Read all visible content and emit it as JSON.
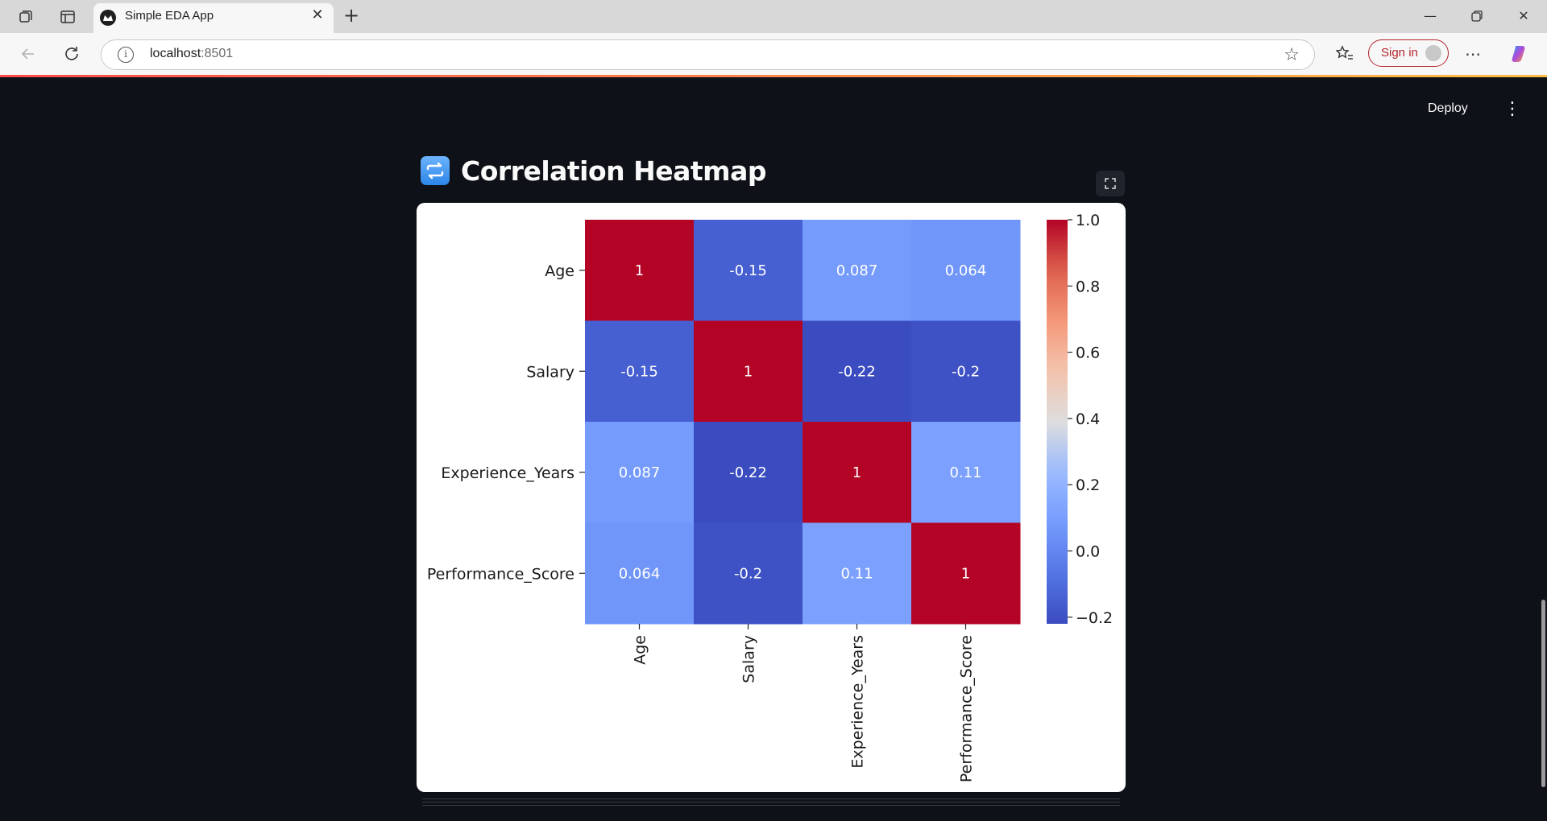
{
  "browser": {
    "tab_title": "Simple EDA App",
    "url_host": "localhost",
    "url_port": ":8501",
    "sign_in_label": "Sign in"
  },
  "app": {
    "deploy_label": "Deploy",
    "section_title": "Correlation Heatmap",
    "title_emoji": "repeat-arrows-icon"
  },
  "chart_data": {
    "type": "heatmap",
    "title": "",
    "rows": [
      "Age",
      "Salary",
      "Experience_Years",
      "Performance_Score"
    ],
    "columns": [
      "Age",
      "Salary",
      "Experience_Years",
      "Performance_Score"
    ],
    "values": [
      [
        1,
        -0.15,
        0.087,
        0.064
      ],
      [
        -0.15,
        1,
        -0.22,
        -0.2
      ],
      [
        0.087,
        -0.22,
        1,
        0.11
      ],
      [
        0.064,
        -0.2,
        0.11,
        1
      ]
    ],
    "value_labels": [
      [
        "1",
        "-0.15",
        "0.087",
        "0.064"
      ],
      [
        "-0.15",
        "1",
        "-0.22",
        "-0.2"
      ],
      [
        "0.087",
        "-0.22",
        "1",
        "0.11"
      ],
      [
        "0.064",
        "-0.2",
        "0.11",
        "1"
      ]
    ],
    "colormap": "coolwarm",
    "vmin": -0.22,
    "vmax": 1.0,
    "colorbar_ticks": [
      1.0,
      0.8,
      0.6,
      0.4,
      0.2,
      0.0,
      -0.2
    ],
    "colorbar_tick_labels": [
      "1.0",
      "0.8",
      "0.6",
      "0.4",
      "0.2",
      "0.0",
      "−0.2"
    ],
    "annotations": true
  }
}
